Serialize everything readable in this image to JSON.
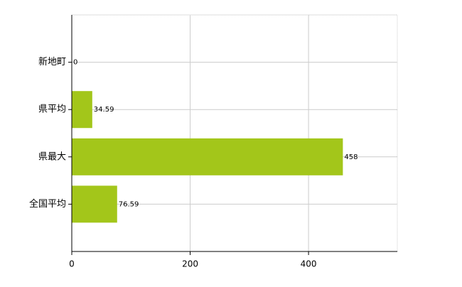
{
  "chart_data": {
    "type": "hbar",
    "categories": [
      "新地町",
      "県平均",
      "県最大",
      "全国平均"
    ],
    "values": [
      0,
      34.59,
      458,
      76.59
    ],
    "color": "#a3c61a",
    "xlim": [
      0,
      550
    ],
    "xticks": [
      0,
      200,
      400
    ],
    "grid": true
  }
}
